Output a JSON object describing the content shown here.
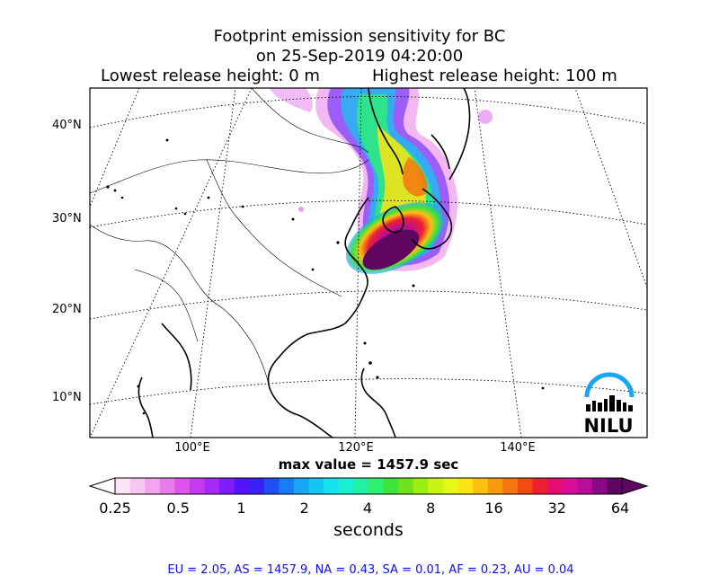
{
  "title": {
    "line1": "Footprint emission sensitivity for BC",
    "line2": "on 25-Sep-2019 04:20:00",
    "lowest": "Lowest release height: 0 m",
    "highest": "Highest release height: 100 m"
  },
  "map": {
    "lat_labels": [
      "40°N",
      "30°N",
      "20°N",
      "10°N"
    ],
    "lon_labels": [
      "100°E",
      "120°E",
      "140°E"
    ],
    "logo_text": "NILU"
  },
  "max_value": "max value = 1457.9 sec",
  "colorbar": {
    "ticks": [
      "0.25",
      "0.5",
      "1",
      "2",
      "4",
      "8",
      "16",
      "32",
      "64"
    ],
    "label": "seconds",
    "colors": [
      "#fde3f7",
      "#f9c6f1",
      "#f2a5ec",
      "#e97de8",
      "#dd55ea",
      "#c23bf0",
      "#a52af6",
      "#7f1cfa",
      "#5314fb",
      "#3a20f7",
      "#1f4ef3",
      "#1a7cf5",
      "#17a5f4",
      "#14c6f2",
      "#17e3ee",
      "#1aefd4",
      "#22f0a6",
      "#2ef072",
      "#3ee33c",
      "#6ee31b",
      "#9bee13",
      "#c7f415",
      "#e8f815",
      "#fbe413",
      "#fbc011",
      "#f89a10",
      "#f57510",
      "#f04b10",
      "#ec1f35",
      "#e60d70",
      "#d80e97",
      "#b80d99",
      "#8a0a84",
      "#5e0660"
    ]
  },
  "footer": "EU = 2.05,  AS = 1457.9,  NA = 0.43,  SA = 0.01,  AF = 0.23,  AU = 0.04"
}
